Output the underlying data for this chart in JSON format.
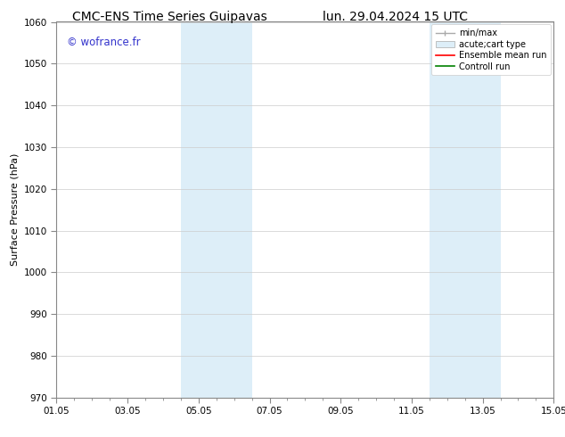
{
  "title": "CMC-ENS Time Series Guipavas",
  "title_right": "lun. 29.04.2024 15 UTC",
  "ylabel": "Surface Pressure (hPa)",
  "xlim": [
    0,
    14
  ],
  "ylim": [
    970,
    1060
  ],
  "yticks": [
    970,
    980,
    990,
    1000,
    1010,
    1020,
    1030,
    1040,
    1050,
    1060
  ],
  "xtick_labels": [
    "01.05",
    "03.05",
    "05.05",
    "07.05",
    "09.05",
    "11.05",
    "13.05",
    "15.05"
  ],
  "xtick_positions": [
    0,
    2,
    4,
    6,
    8,
    10,
    12,
    14
  ],
  "shaded_bands": [
    {
      "x_start": 3.5,
      "x_end": 5.5,
      "color": "#ddeef8"
    },
    {
      "x_start": 10.5,
      "x_end": 12.5,
      "color": "#ddeef8"
    }
  ],
  "watermark_text": "© wofrance.fr",
  "watermark_color": "#3333cc",
  "background_color": "#ffffff",
  "grid_color": "#cccccc",
  "title_fontsize": 10,
  "axis_fontsize": 8,
  "tick_fontsize": 7.5,
  "legend_fontsize": 7,
  "spine_color": "#888888"
}
